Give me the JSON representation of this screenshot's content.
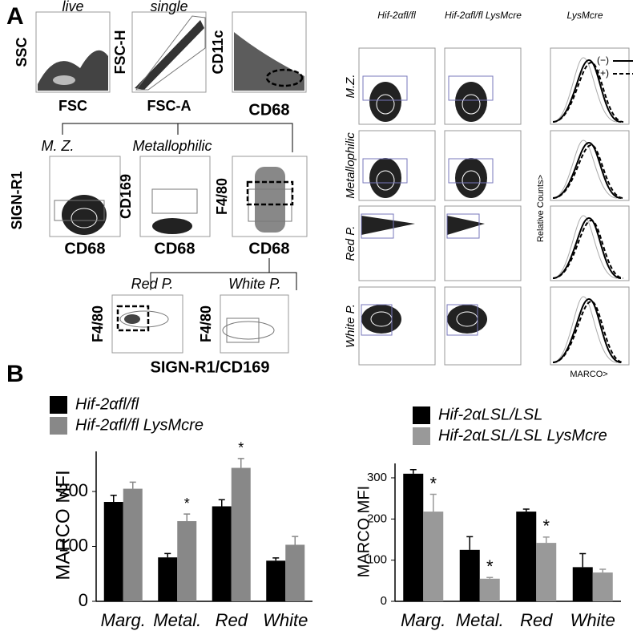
{
  "panel_a": {
    "label": "A",
    "gating": {
      "live": "live",
      "single": "single",
      "ssc": "SSC",
      "fsc": "FSC",
      "fsch": "FSC-H",
      "fsca": "FSC-A",
      "cd11c": "CD11c",
      "cd68a": "CD68",
      "mz": "M. Z.",
      "metallophilic": "Metallophilic",
      "signr1": "SIGN-R1",
      "cd68b": "CD68",
      "cd169": "CD169",
      "cd68c": "CD68",
      "f480a": "F4/80",
      "cd68d": "CD68",
      "redp": "Red P.",
      "whitep": "White P.",
      "f480b": "F4/80",
      "f480c": "F4/80",
      "signr1cd169": "SIGN-R1/CD169"
    },
    "grid": {
      "col1": "Hif-2αfl/fl",
      "col2": "Hif-2αfl/fl LysMcre",
      "col3": "LysMcre",
      "rows": [
        "M.Z.",
        "Metallophilic",
        "Red P.",
        "White P."
      ],
      "ylabel": "Relative Counts>",
      "xlabel": "MARCO>",
      "minus": "(−)",
      "plus": "(+)"
    }
  },
  "panel_b": {
    "label": "B"
  },
  "chart_data": [
    {
      "type": "bar",
      "ylabel": "MARCO MFI",
      "categories": [
        "Marg.",
        "Metal.",
        "Red",
        "White"
      ],
      "series": [
        {
          "name": "Hif-2αfl/fl",
          "color": "#000000",
          "values": [
            181,
            80,
            173,
            74
          ],
          "errors": [
            12,
            7,
            12,
            5
          ]
        },
        {
          "name": "Hif-2αfl/fl LysMcre",
          "color": "#888888",
          "values": [
            205,
            146,
            243,
            103
          ],
          "errors": [
            12,
            13,
            17,
            15
          ]
        }
      ],
      "ylim": [
        0,
        273
      ],
      "yticks": [
        0,
        100,
        200
      ],
      "annotations": [
        {
          "text": "*",
          "x": "Metal.",
          "series": "Hif-2αfl/fl LysMcre"
        },
        {
          "text": "*",
          "x": "Red",
          "series": "Hif-2αfl/fl LysMcre"
        }
      ]
    },
    {
      "type": "bar",
      "ylabel": "MARCO MFI",
      "categories": [
        "Marg.",
        "Metal.",
        "Red",
        "White"
      ],
      "series": [
        {
          "name": "Hif-2αLSL/LSL",
          "color": "#000000",
          "values": [
            310,
            125,
            218,
            83
          ],
          "errors": [
            10,
            32,
            6,
            33
          ]
        },
        {
          "name": "Hif-2αLSL/LSL LysMcre",
          "color": "#999999",
          "values": [
            218,
            55,
            142,
            70
          ],
          "errors": [
            42,
            3,
            14,
            8
          ]
        }
      ],
      "ylim": [
        0,
        335
      ],
      "yticks": [
        0,
        100,
        200,
        300
      ],
      "annotations": [
        {
          "text": "*",
          "x": "Marg.",
          "series": "Hif-2αLSL/LSL LysMcre"
        },
        {
          "text": "*",
          "x": "Metal.",
          "series": "Hif-2αLSL/LSL LysMcre"
        },
        {
          "text": "*",
          "x": "Red",
          "series": "Hif-2αLSL/LSL LysMcre"
        }
      ]
    }
  ]
}
